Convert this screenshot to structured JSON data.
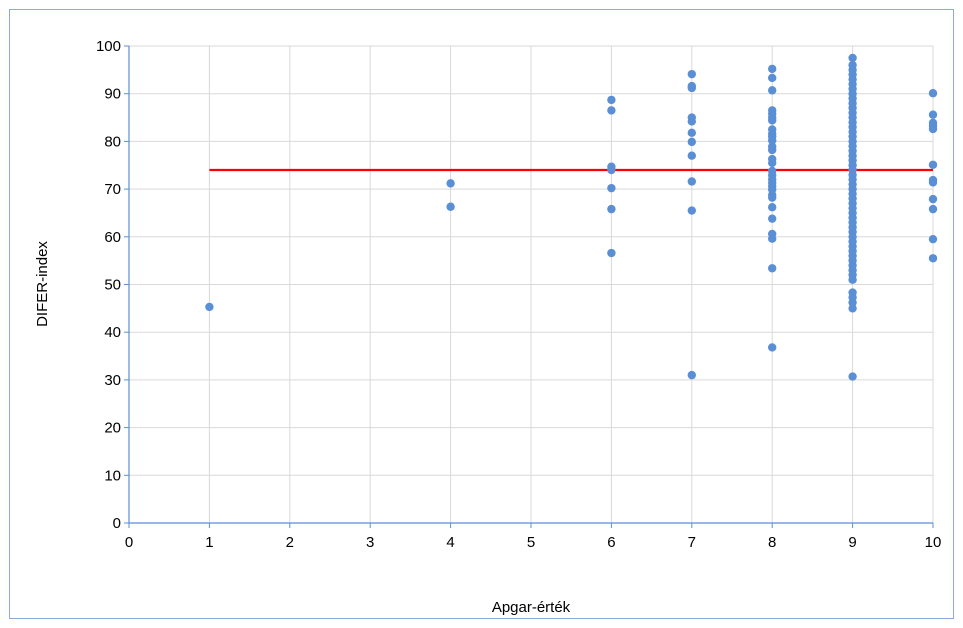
{
  "chart_data": {
    "type": "scatter",
    "xlabel": "Apgar-érték",
    "ylabel": "DIFER-index",
    "xlim": [
      0,
      10
    ],
    "ylim": [
      0,
      100
    ],
    "x_ticks": [
      "0",
      "1",
      "2",
      "3",
      "4",
      "5",
      "6",
      "7",
      "8",
      "9",
      "10"
    ],
    "y_ticks": [
      "0",
      "10",
      "20",
      "30",
      "40",
      "50",
      "60",
      "70",
      "80",
      "90",
      "100"
    ],
    "grid": true,
    "legend": "none",
    "reference_line": {
      "y": 74,
      "x_from": 1,
      "x_to": 10,
      "color": "#ff0000"
    },
    "series": [
      {
        "color": "#5b8fd5",
        "points": [
          [
            1,
            45.3
          ],
          [
            4,
            71.2
          ],
          [
            4,
            66.3
          ],
          [
            6,
            88.7
          ],
          [
            6,
            86.5
          ],
          [
            6,
            74.7
          ],
          [
            6,
            74.0
          ],
          [
            6,
            70.2
          ],
          [
            6,
            65.8
          ],
          [
            6,
            56.6
          ],
          [
            7,
            94.1
          ],
          [
            7,
            91.6
          ],
          [
            7,
            91.2
          ],
          [
            7,
            85.0
          ],
          [
            7,
            84.2
          ],
          [
            7,
            81.8
          ],
          [
            7,
            79.9
          ],
          [
            7,
            77.0
          ],
          [
            7,
            71.6
          ],
          [
            7,
            65.5
          ],
          [
            7,
            31.0
          ],
          [
            8,
            95.2
          ],
          [
            8,
            93.3
          ],
          [
            8,
            90.7
          ],
          [
            8,
            86.5
          ],
          [
            8,
            85.8
          ],
          [
            8,
            85.0
          ],
          [
            8,
            84.4
          ],
          [
            8,
            82.5
          ],
          [
            8,
            81.6
          ],
          [
            8,
            81.0
          ],
          [
            8,
            80.2
          ],
          [
            8,
            78.9
          ],
          [
            8,
            78.2
          ],
          [
            8,
            76.3
          ],
          [
            8,
            75.5
          ],
          [
            8,
            73.8
          ],
          [
            8,
            72.9
          ],
          [
            8,
            72.0
          ],
          [
            8,
            71.3
          ],
          [
            8,
            70.6
          ],
          [
            8,
            69.9
          ],
          [
            8,
            68.8
          ],
          [
            8,
            68.2
          ],
          [
            8,
            66.2
          ],
          [
            8,
            63.8
          ],
          [
            8,
            60.6
          ],
          [
            8,
            59.6
          ],
          [
            8,
            53.4
          ],
          [
            8,
            36.8
          ],
          [
            9,
            97.5
          ],
          [
            9,
            96.0
          ],
          [
            9,
            95.0
          ],
          [
            9,
            94.0
          ],
          [
            9,
            93.0
          ],
          [
            9,
            92.0
          ],
          [
            9,
            91.0
          ],
          [
            9,
            90.0
          ],
          [
            9,
            89.0
          ],
          [
            9,
            88.0
          ],
          [
            9,
            87.0
          ],
          [
            9,
            86.0
          ],
          [
            9,
            85.0
          ],
          [
            9,
            84.0
          ],
          [
            9,
            83.0
          ],
          [
            9,
            82.0
          ],
          [
            9,
            81.0
          ],
          [
            9,
            80.0
          ],
          [
            9,
            79.0
          ],
          [
            9,
            78.0
          ],
          [
            9,
            77.0
          ],
          [
            9,
            76.0
          ],
          [
            9,
            75.0
          ],
          [
            9,
            74.0
          ],
          [
            9,
            73.0
          ],
          [
            9,
            72.0
          ],
          [
            9,
            71.0
          ],
          [
            9,
            70.0
          ],
          [
            9,
            69.0
          ],
          [
            9,
            68.0
          ],
          [
            9,
            67.0
          ],
          [
            9,
            66.0
          ],
          [
            9,
            65.0
          ],
          [
            9,
            64.0
          ],
          [
            9,
            63.0
          ],
          [
            9,
            62.0
          ],
          [
            9,
            61.0
          ],
          [
            9,
            60.0
          ],
          [
            9,
            59.0
          ],
          [
            9,
            58.0
          ],
          [
            9,
            57.0
          ],
          [
            9,
            56.0
          ],
          [
            9,
            55.0
          ],
          [
            9,
            54.0
          ],
          [
            9,
            53.0
          ],
          [
            9,
            52.0
          ],
          [
            9,
            51.0
          ],
          [
            9,
            48.3
          ],
          [
            9,
            47.3
          ],
          [
            9,
            46.2
          ],
          [
            9,
            45.0
          ],
          [
            9,
            30.7
          ],
          [
            10,
            90.1
          ],
          [
            10,
            85.6
          ],
          [
            10,
            83.9
          ],
          [
            10,
            83.3
          ],
          [
            10,
            82.6
          ],
          [
            10,
            75.1
          ],
          [
            10,
            71.9
          ],
          [
            10,
            71.4
          ],
          [
            10,
            67.9
          ],
          [
            10,
            65.8
          ],
          [
            10,
            59.5
          ],
          [
            10,
            55.5
          ]
        ]
      }
    ]
  }
}
